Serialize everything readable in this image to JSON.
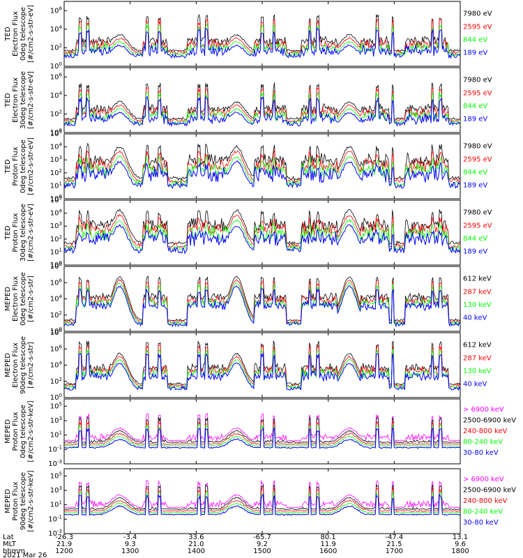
{
  "colors": {
    "black": "#000000",
    "blue": "#0000ff",
    "red": "#ff0000",
    "green": "#00ff00",
    "magenta": "#ff00ff"
  },
  "chart_data": [
    {
      "type": "line",
      "ylabel": [
        "TED",
        "Electron Flux",
        "0deg telescope",
        "[#/cm2-s-str-eV]"
      ],
      "ylim_exp": [
        0,
        7
      ],
      "scale": "log",
      "series": [
        {
          "name": "7980 eV",
          "color": "black"
        },
        {
          "name": "2595 eV",
          "color": "red"
        },
        {
          "name": "844 eV",
          "color": "green"
        },
        {
          "name": "189 eV",
          "color": "blue"
        }
      ],
      "profile": {
        "bg": 1.6,
        "hump": 3.0,
        "spikes": 5.6,
        "gap": false
      }
    },
    {
      "type": "line",
      "ylabel": [
        "TED",
        "Electron Flux",
        "30deg telescope",
        "[#/cm2-s-str-eV]"
      ],
      "ylim_exp": [
        0,
        7
      ],
      "scale": "log",
      "series": [
        {
          "name": "7980 eV",
          "color": "black"
        },
        {
          "name": "2595 eV",
          "color": "red"
        },
        {
          "name": "844 eV",
          "color": "green"
        },
        {
          "name": "189 eV",
          "color": "blue"
        }
      ],
      "profile": {
        "bg": 1.4,
        "hump": 2.9,
        "spikes": 5.4,
        "gap": false
      }
    },
    {
      "type": "line",
      "ylabel": [
        "TED",
        "Proton Flux",
        "0deg telescope",
        "[#/cm2-s-str-eV]"
      ],
      "ylim_exp": [
        0,
        5
      ],
      "scale": "log",
      "series": [
        {
          "name": "7980 eV",
          "color": "black"
        },
        {
          "name": "2595 eV",
          "color": "red"
        },
        {
          "name": "844 eV",
          "color": "green"
        },
        {
          "name": "189 eV",
          "color": "blue"
        }
      ],
      "profile": {
        "bg": 1.5,
        "hump": 3.6,
        "spikes": 4.3,
        "gap": false
      }
    },
    {
      "type": "line",
      "ylabel": [
        "TED",
        "Proton Flux",
        "30deg telescope",
        "[#/cm2-s-str-eV]"
      ],
      "ylim_exp": [
        0,
        5
      ],
      "scale": "log",
      "series": [
        {
          "name": "7980 eV",
          "color": "black"
        },
        {
          "name": "2595 eV",
          "color": "red"
        },
        {
          "name": "844 eV",
          "color": "green"
        },
        {
          "name": "189 eV",
          "color": "blue"
        }
      ],
      "profile": {
        "bg": 1.6,
        "hump": 3.8,
        "spikes": 4.3,
        "gap": false
      }
    },
    {
      "type": "line",
      "ylabel": [
        "MEPED",
        "Electron Flux",
        "0deg telescope",
        "[#/cm2-s-str]"
      ],
      "ylim_exp": [
        0,
        8
      ],
      "scale": "log",
      "series": [
        {
          "name": "612 keV",
          "color": "black"
        },
        {
          "name": "287 keV",
          "color": "red"
        },
        {
          "name": "130 keV",
          "color": "green"
        },
        {
          "name": "40 keV",
          "color": "blue"
        }
      ],
      "profile": {
        "bg": 1.3,
        "hump": 6.3,
        "spikes": 6.8,
        "gap": false
      }
    },
    {
      "type": "line",
      "ylabel": [
        "MEPED",
        "Electron Flux",
        "90deg telescope",
        "[#/cm2-s-str]"
      ],
      "ylim_exp": [
        0,
        8
      ],
      "scale": "log",
      "series": [
        {
          "name": "612 keV",
          "color": "black"
        },
        {
          "name": "287 keV",
          "color": "red"
        },
        {
          "name": "130 keV",
          "color": "green"
        },
        {
          "name": "40 keV",
          "color": "blue"
        }
      ],
      "profile": {
        "bg": 1.6,
        "hump": 5.0,
        "spikes": 7.0,
        "gap": false
      }
    },
    {
      "type": "line",
      "ylabel": [
        "MEPED",
        "Proton Flux",
        "0deg telescope",
        "[#/cm2-s-str-keV]"
      ],
      "ylim_exp": [
        -3,
        6
      ],
      "scale": "log",
      "series": [
        {
          "name": "> 6900 keV",
          "color": "magenta"
        },
        {
          "name": "2500-6900 keV",
          "color": "black"
        },
        {
          "name": "240-800 keV",
          "color": "red"
        },
        {
          "name": "80-240 keV",
          "color": "green"
        },
        {
          "name": "30-80 keV",
          "color": "blue"
        }
      ],
      "profile": {
        "bg": 0.2,
        "hump": 1.4,
        "spikes": 4.0,
        "gap": true
      }
    },
    {
      "type": "line",
      "ylabel": [
        "MEPED",
        "Proton Flux",
        "90deg telescope",
        "[#/cm2-s-str-keV]"
      ],
      "ylim_exp": [
        -3,
        6
      ],
      "scale": "log",
      "series": [
        {
          "name": "> 6900 keV",
          "color": "magenta"
        },
        {
          "name": "2500-6900 keV",
          "color": "black"
        },
        {
          "name": "240-800 keV",
          "color": "red"
        },
        {
          "name": "80-240 keV",
          "color": "green"
        },
        {
          "name": "30-80 keV",
          "color": "blue"
        }
      ],
      "profile": {
        "bg": 0.6,
        "hump": 1.8,
        "spikes": 4.4,
        "gap": true
      }
    }
  ],
  "x_axis": {
    "row_labels": [
      "Lat",
      "MLT",
      "hhmm"
    ],
    "ticks": [
      {
        "lat": "-26.3",
        "mlt": "21.9",
        "hhmm": "1200"
      },
      {
        "lat": "-3.4",
        "mlt": "9.3",
        "hhmm": "1300"
      },
      {
        "lat": "33.6",
        "mlt": "21.0",
        "hhmm": "1400"
      },
      {
        "lat": "-65.7",
        "mlt": "9.2",
        "hhmm": "1500"
      },
      {
        "lat": "80.1",
        "mlt": "11.9",
        "hhmm": "1600"
      },
      {
        "lat": "-47.4",
        "mlt": "21.5",
        "hhmm": "1700"
      },
      {
        "lat": "13.1",
        "mlt": "9.6",
        "hhmm": "1800"
      }
    ],
    "date": "2021 Mar 26"
  }
}
